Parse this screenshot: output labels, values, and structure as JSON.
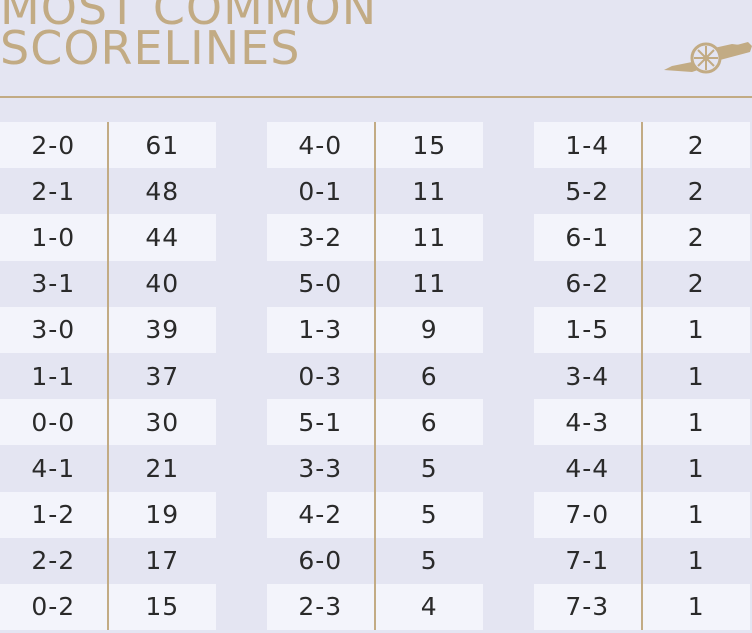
{
  "title": {
    "line1": "MOST COMMON",
    "line2": "SCORELINES"
  },
  "crest_icon": "cannon-icon",
  "colors": {
    "accent": "#c2ab84",
    "background": "#e4e5f2",
    "row_light": "#f3f4fb",
    "text": "#2a2a2a"
  },
  "columns": [
    {
      "rows": [
        {
          "score": "2-0",
          "count": "61"
        },
        {
          "score": "2-1",
          "count": "48"
        },
        {
          "score": "1-0",
          "count": "44"
        },
        {
          "score": "3-1",
          "count": "40"
        },
        {
          "score": "3-0",
          "count": "39"
        },
        {
          "score": "1-1",
          "count": "37"
        },
        {
          "score": "0-0",
          "count": "30"
        },
        {
          "score": "4-1",
          "count": "21"
        },
        {
          "score": "1-2",
          "count": "19"
        },
        {
          "score": "2-2",
          "count": "17"
        },
        {
          "score": "0-2",
          "count": "15"
        }
      ]
    },
    {
      "rows": [
        {
          "score": "4-0",
          "count": "15"
        },
        {
          "score": "0-1",
          "count": "11"
        },
        {
          "score": "3-2",
          "count": "11"
        },
        {
          "score": "5-0",
          "count": "11"
        },
        {
          "score": "1-3",
          "count": "9"
        },
        {
          "score": "0-3",
          "count": "6"
        },
        {
          "score": "5-1",
          "count": "6"
        },
        {
          "score": "3-3",
          "count": "5"
        },
        {
          "score": "4-2",
          "count": "5"
        },
        {
          "score": "6-0",
          "count": "5"
        },
        {
          "score": "2-3",
          "count": "4"
        }
      ]
    },
    {
      "rows": [
        {
          "score": "1-4",
          "count": "2"
        },
        {
          "score": "5-2",
          "count": "2"
        },
        {
          "score": "6-1",
          "count": "2"
        },
        {
          "score": "6-2",
          "count": "2"
        },
        {
          "score": "1-5",
          "count": "1"
        },
        {
          "score": "3-4",
          "count": "1"
        },
        {
          "score": "4-3",
          "count": "1"
        },
        {
          "score": "4-4",
          "count": "1"
        },
        {
          "score": "7-0",
          "count": "1"
        },
        {
          "score": "7-1",
          "count": "1"
        },
        {
          "score": "7-3",
          "count": "1"
        }
      ]
    }
  ]
}
